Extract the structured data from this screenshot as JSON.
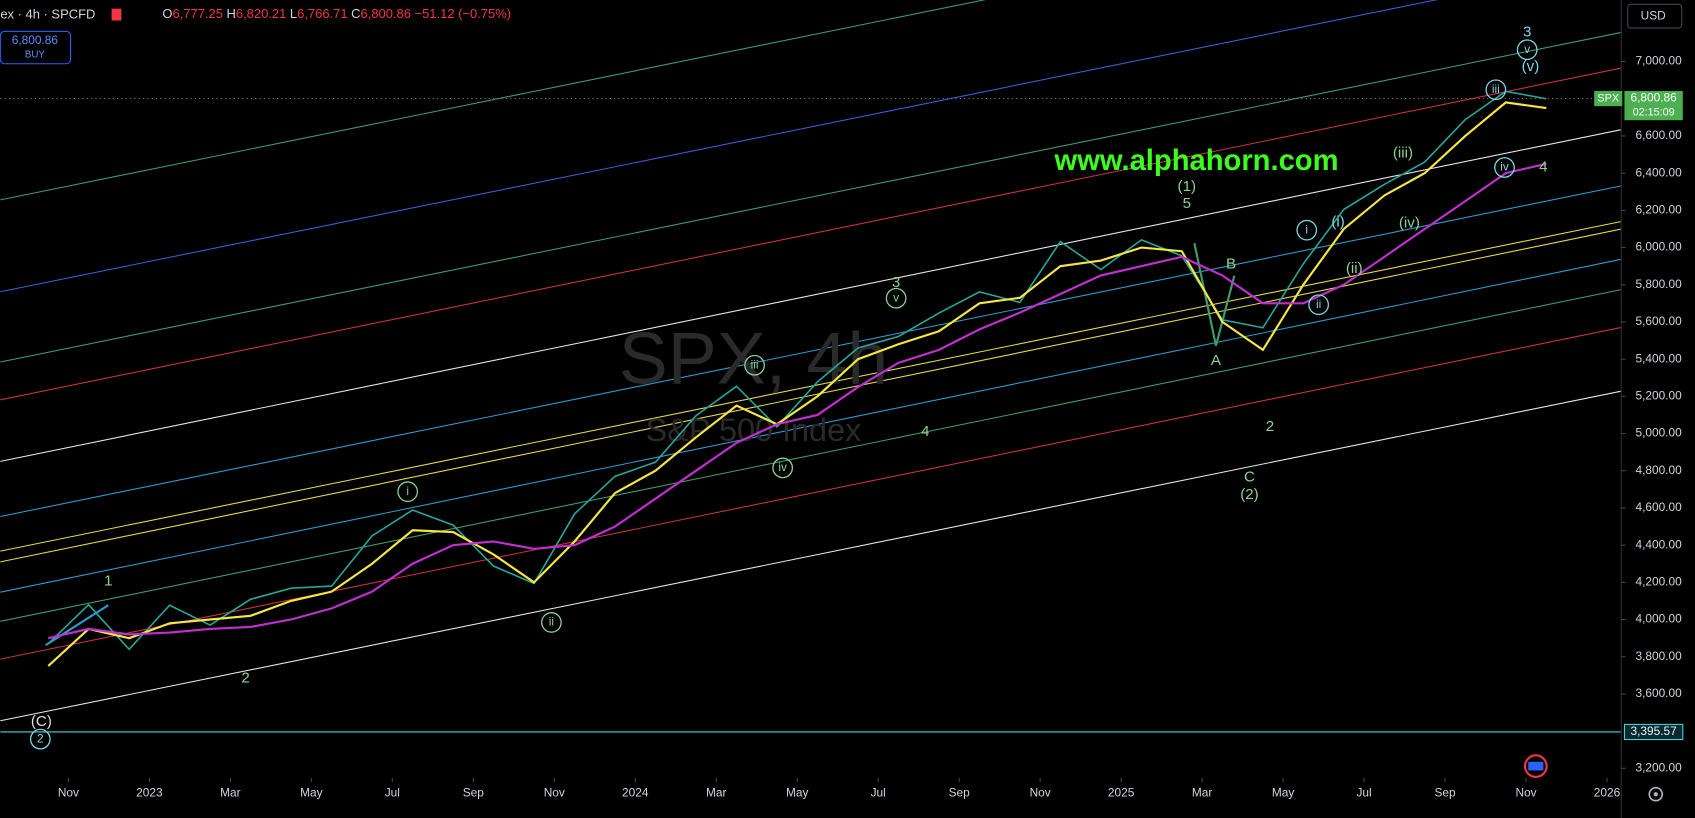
{
  "header": {
    "symbol": "ex · 4h · SPCFD",
    "ohlc": [
      {
        "label": "O",
        "value": "6,777.25"
      },
      {
        "label": "H",
        "value": "6,820.21"
      },
      {
        "label": "L",
        "value": "6,766.71"
      },
      {
        "label": "C",
        "value": "6,800.86"
      }
    ],
    "change": "−51.12 (−0.75%)"
  },
  "buy_box": {
    "price": "6,800.86",
    "action": "BUY"
  },
  "currency": "USD",
  "watermark": {
    "title": "SPX, 4h",
    "subtitle": "S&P 500 Index"
  },
  "website": "www.alphahorn.com",
  "chart_data": {
    "type": "line",
    "x": [
      "2022-10",
      "2022-11",
      "2022-12",
      "2023-01",
      "2023-02",
      "2023-03",
      "2023-04",
      "2023-05",
      "2023-06",
      "2023-07",
      "2023-08",
      "2023-09",
      "2023-10",
      "2023-11",
      "2023-12",
      "2024-01",
      "2024-02",
      "2024-03",
      "2024-04",
      "2024-05",
      "2024-06",
      "2024-07",
      "2024-08",
      "2024-09",
      "2024-10",
      "2024-11",
      "2024-12",
      "2025-01",
      "2025-02",
      "2025-03",
      "2025-04",
      "2025-05",
      "2025-06",
      "2025-07",
      "2025-08",
      "2025-09",
      "2025-10",
      "2025-11"
    ],
    "series": [
      {
        "color": "#26a69a",
        "values": [
          3870,
          4080,
          3840,
          4077,
          3970,
          4109,
          4169,
          4180,
          4450,
          4589,
          4508,
          4288,
          4194,
          4568,
          4770,
          4846,
          5096,
          5254,
          5036,
          5278,
          5460,
          5522,
          5648,
          5762,
          5705,
          6032,
          5882,
          6041,
          5955,
          5612,
          5569,
          5912,
          6205,
          6339,
          6460,
          6688,
          6840,
          6800
        ]
      },
      {
        "color": "#f5e642",
        "values": [
          3750,
          3950,
          3900,
          3980,
          4000,
          4020,
          4100,
          4150,
          4300,
          4480,
          4470,
          4350,
          4200,
          4420,
          4680,
          4800,
          4980,
          5150,
          5050,
          5200,
          5400,
          5480,
          5550,
          5700,
          5730,
          5900,
          5930,
          6000,
          5980,
          5600,
          5450,
          5800,
          6100,
          6280,
          6400,
          6600,
          6780,
          6750
        ]
      },
      {
        "color": "#c22fd1",
        "values": [
          3900,
          3950,
          3920,
          3930,
          3950,
          3960,
          4000,
          4060,
          4150,
          4300,
          4400,
          4420,
          4380,
          4400,
          4500,
          4650,
          4800,
          4950,
          5050,
          5100,
          5250,
          5380,
          5450,
          5560,
          5650,
          5750,
          5850,
          5900,
          5950,
          5850,
          5700,
          5700,
          5800,
          5950,
          6100,
          6250,
          6400,
          6450
        ]
      }
    ],
    "ylim": [
      2933,
      7331
    ],
    "yticks": [
      {
        "value": 3200,
        "label": "3,200.00"
      },
      {
        "value": 3600,
        "label": "3,600.00"
      },
      {
        "value": 3800,
        "label": "3,800.00"
      },
      {
        "value": 4000,
        "label": "4,000.00"
      },
      {
        "value": 4200,
        "label": "4,200.00"
      },
      {
        "value": 4400,
        "label": "4,400.00"
      },
      {
        "value": 4600,
        "label": "4,600.00"
      },
      {
        "value": 4800,
        "label": "4,800.00"
      },
      {
        "value": 5000,
        "label": "5,000.00"
      },
      {
        "value": 5200,
        "label": "5,200.00"
      },
      {
        "value": 5400,
        "label": "5,400.00"
      },
      {
        "value": 5600,
        "label": "5,600.00"
      },
      {
        "value": 5800,
        "label": "5,800.00"
      },
      {
        "value": 6000,
        "label": "6,000.00"
      },
      {
        "value": 6200,
        "label": "6,200.00"
      },
      {
        "value": 6400,
        "label": "6,400.00"
      },
      {
        "value": 6600,
        "label": "6,600.00"
      },
      {
        "value": 7000,
        "label": "7,000.00"
      }
    ],
    "xticks": [
      {
        "value": "2022-11",
        "label": "Nov"
      },
      {
        "value": "2023-01",
        "label": "2023"
      },
      {
        "value": "2023-03",
        "label": "Mar"
      },
      {
        "value": "2023-05",
        "label": "May"
      },
      {
        "value": "2023-07",
        "label": "Jul"
      },
      {
        "value": "2023-09",
        "label": "Sep"
      },
      {
        "value": "2023-11",
        "label": "Nov"
      },
      {
        "value": "2024-01",
        "label": "2024"
      },
      {
        "value": "2024-03",
        "label": "Mar"
      },
      {
        "value": "2024-05",
        "label": "May"
      },
      {
        "value": "2024-07",
        "label": "Jul"
      },
      {
        "value": "2024-09",
        "label": "Sep"
      },
      {
        "value": "2024-11",
        "label": "Nov"
      },
      {
        "value": "2025-01",
        "label": "2025"
      },
      {
        "value": "2025-03",
        "label": "Mar"
      },
      {
        "value": "2025-05",
        "label": "May"
      },
      {
        "value": "2025-07",
        "label": "Jul"
      },
      {
        "value": "2025-09",
        "label": "Sep"
      },
      {
        "value": "2025-11",
        "label": "Nov"
      },
      {
        "value": "2026-01",
        "label": "2026"
      }
    ],
    "price_tag": {
      "symbol": "SPX",
      "price": {
        "value": 6800.86,
        "label": "6,800.86"
      },
      "countdown": "02:15:09"
    },
    "hline": {
      "value": 3395.57,
      "label": "3,395.57"
    },
    "wave_labels": [
      "(C)",
      "2",
      "1",
      "2",
      "i",
      "ii",
      "iii",
      "iv",
      "3",
      "v",
      "4",
      "(1)",
      "5",
      "B",
      "A",
      "C",
      "(2)",
      "2",
      "i",
      "(i)",
      "(ii)",
      "ii",
      "(iii)",
      "(iv)",
      "iii",
      "iv",
      "4",
      "3",
      "v",
      "(v)"
    ]
  }
}
